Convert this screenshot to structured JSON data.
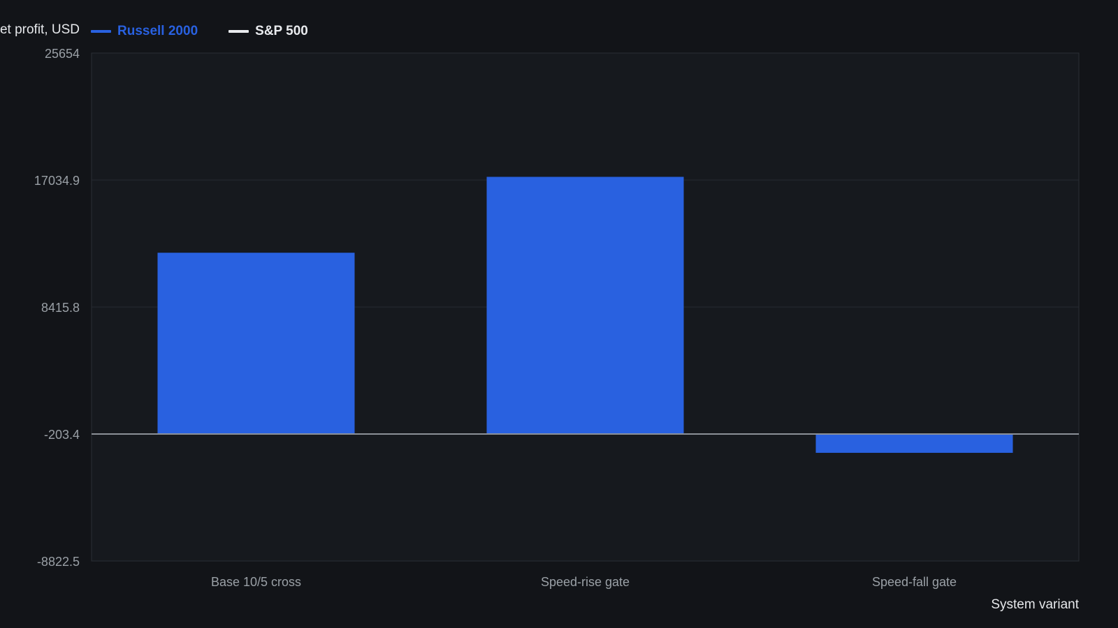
{
  "chart_data": {
    "type": "bar",
    "ylabel": "Net profit, USD",
    "xlabel": "System variant",
    "categories": [
      "Base 10/5 cross",
      "Speed-rise gate",
      "Speed-fall gate"
    ],
    "series": [
      {
        "name": "Russell 2000",
        "values": [
          12100,
          17250,
          -1480
        ]
      }
    ],
    "legend_items": [
      {
        "name": "Russell 2000",
        "color": "#2961e0"
      },
      {
        "name": "S&P 500",
        "color": "#e9ebee"
      }
    ],
    "y_ticks": [
      "25654",
      "17034.9",
      "8415.8",
      "-203.4",
      "-8822.5"
    ],
    "ylim": [
      -8822.5,
      25654
    ],
    "baseline": -203.4,
    "grid": true,
    "legend_position": "top-left",
    "colors": {
      "bar": "#2961e0",
      "background": "#121418",
      "plot_background": "#16191e",
      "grid": "#262a31",
      "baseline": "#8c9198",
      "tick_label": "#9aa0a6",
      "axis_title": "#e6e8eb"
    }
  }
}
